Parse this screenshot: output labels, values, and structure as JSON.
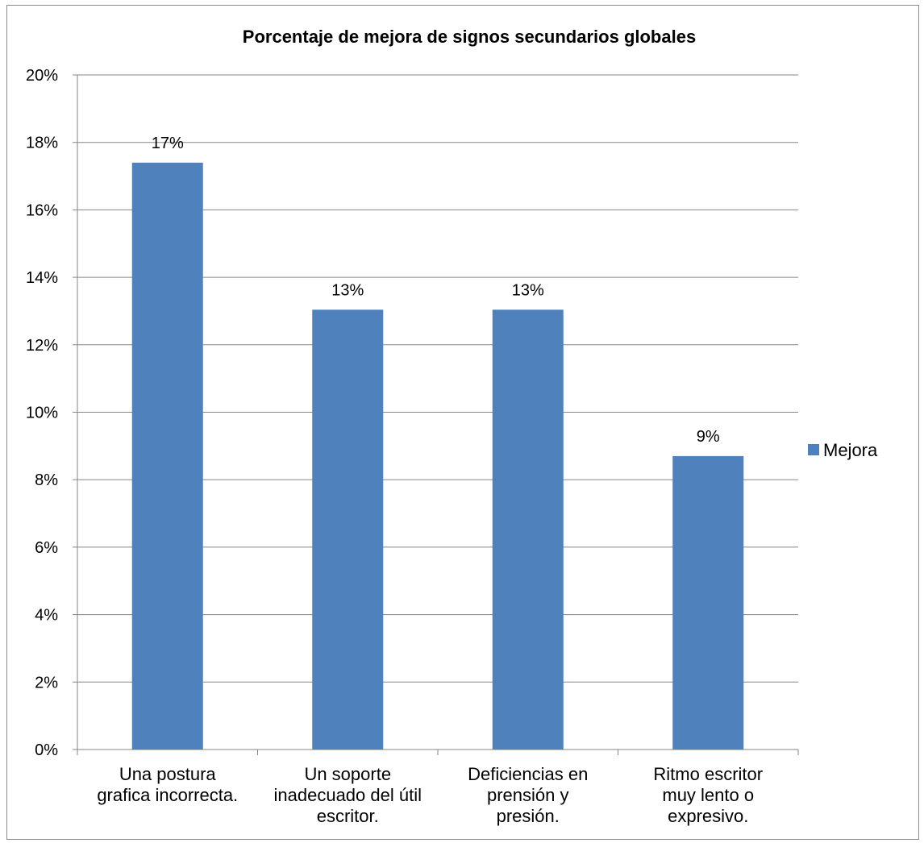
{
  "chart_data": {
    "type": "bar",
    "title": "Porcentaje de mejora de signos secundarios globales",
    "categories": [
      [
        "Una postura",
        "grafica incorrecta."
      ],
      [
        "Un soporte",
        "inadecuado del útil",
        "escritor."
      ],
      [
        "Deficiencias en",
        "prensión y",
        "presión."
      ],
      [
        "Ritmo escritor",
        "muy lento o",
        "expresivo."
      ]
    ],
    "series": [
      {
        "name": "Mejora",
        "values": [
          17.4,
          13.04,
          13.04,
          8.7
        ],
        "data_labels": [
          "17%",
          "13%",
          "13%",
          "9%"
        ],
        "color": "#4f81bd"
      }
    ],
    "ylim": [
      0,
      20
    ],
    "y_step": 2,
    "y_tick_format": "percent",
    "grid": true,
    "gridline_color": "#868686",
    "legend_position": "right"
  }
}
